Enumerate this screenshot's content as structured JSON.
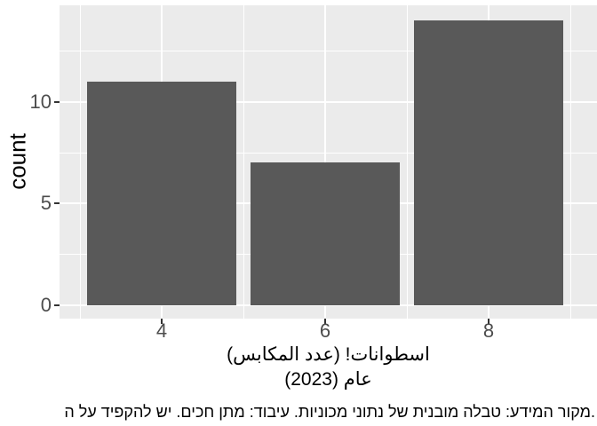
{
  "colors": {
    "background": "#ffffff",
    "panel_bg": "#ebebeb",
    "bar_fill": "#595959",
    "gridline": "#ffffff",
    "tick_label": "#4d4d4d",
    "tick_mark": "#333333",
    "title_text": "#000000"
  },
  "chart_data": {
    "type": "bar",
    "x": [
      4,
      6,
      8
    ],
    "values": [
      11,
      7,
      14
    ],
    "categories": [
      "4",
      "6",
      "8"
    ],
    "title": "",
    "ylabel": "count",
    "xlabel_line1": "اسطوانات! (عدد المكابس)",
    "xlabel_line2": "عام (2023)",
    "caption": ".מקור המידע: טבלה מובנית של נתוני מכוניות. עיבוד: מתן חכים. יש להקפיד על ה",
    "x_tick_labels": [
      "4",
      "6",
      "8"
    ],
    "y_tick_labels": [
      "0",
      "5",
      "10"
    ],
    "y_tick_values": [
      0,
      5,
      10
    ],
    "y_minor_values": [
      2.5,
      7.5,
      12.5
    ],
    "x_tick_values": [
      4,
      6,
      8
    ],
    "x_minor_values": [
      3,
      5,
      7,
      9
    ],
    "xlim": [
      2.75,
      9.33
    ],
    "ylim": [
      -0.7,
      14.7
    ],
    "bar_width_units": 1.8,
    "grid": true,
    "legend_position": "none"
  }
}
